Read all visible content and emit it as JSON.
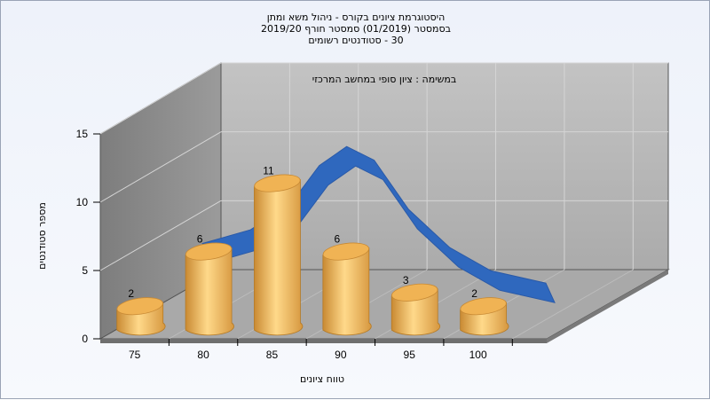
{
  "chart_data": {
    "type": "bar",
    "title_lines": [
      "היסטוגרמת ציונים בקורס - ניהול משא ומתן",
      "בסמסטר  (01/2019)  סמסטר חורף 2019/20",
      "30 - סטודנטים רשומים"
    ],
    "annotation": "במשימה : ציון סופי במחשב המרכזי",
    "xlabel": "טווח ציונים",
    "ylabel": "מספר סטודנטים",
    "categories": [
      "75",
      "80",
      "85",
      "90",
      "95",
      "100"
    ],
    "values": [
      2,
      6,
      11,
      6,
      3,
      2
    ],
    "ylim": [
      0,
      15
    ],
    "yticks": [
      0,
      5,
      10,
      15
    ],
    "curve": {
      "type": "normal-distribution",
      "color": "#2f68be",
      "points": [
        [
          78,
          7.5
        ],
        [
          81.5,
          8.5
        ],
        [
          84.5,
          10.5
        ],
        [
          86.5,
          13.2
        ],
        [
          88.5,
          14.6
        ],
        [
          90.5,
          13.6
        ],
        [
          93,
          10
        ],
        [
          96,
          7.2
        ],
        [
          99,
          5.5
        ],
        [
          103,
          4.6
        ]
      ]
    },
    "colors": {
      "bar": "#e8a84b",
      "bar_light": "#ffd98a",
      "bar_dark": "#b97d28",
      "wall_back": "#b0b0b0",
      "wall_side": "#8a8a8a",
      "floor": "#a8a8a8"
    },
    "grid": true,
    "view": "3d"
  }
}
